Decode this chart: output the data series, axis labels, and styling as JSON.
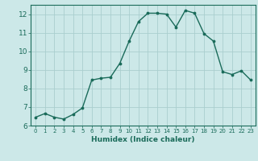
{
  "x": [
    0,
    1,
    2,
    3,
    4,
    5,
    6,
    7,
    8,
    9,
    10,
    11,
    12,
    13,
    14,
    15,
    16,
    17,
    18,
    19,
    20,
    21,
    22,
    23
  ],
  "y": [
    6.45,
    6.65,
    6.45,
    6.35,
    6.6,
    6.95,
    8.45,
    8.55,
    8.6,
    9.35,
    10.55,
    11.6,
    12.05,
    12.05,
    12.0,
    11.3,
    12.2,
    12.05,
    10.95,
    10.55,
    8.9,
    8.75,
    8.95,
    8.45
  ],
  "xlabel": "Humidex (Indice chaleur)",
  "ylim": [
    6,
    12.5
  ],
  "xlim": [
    -0.5,
    23.5
  ],
  "yticks": [
    6,
    7,
    8,
    9,
    10,
    11,
    12
  ],
  "xticks": [
    0,
    1,
    2,
    3,
    4,
    5,
    6,
    7,
    8,
    9,
    10,
    11,
    12,
    13,
    14,
    15,
    16,
    17,
    18,
    19,
    20,
    21,
    22,
    23
  ],
  "line_color": "#1a6b5a",
  "marker_color": "#1a6b5a",
  "bg_color": "#cce8e8",
  "grid_color": "#aacece"
}
